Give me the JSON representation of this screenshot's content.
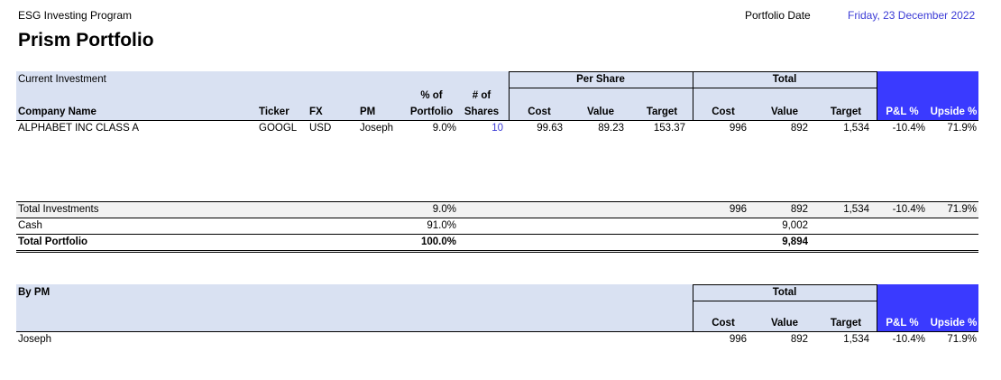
{
  "header": {
    "program": "ESG Investing Program",
    "title": "Prism Portfolio",
    "date_label": "Portfolio Date",
    "date": "Friday, 23 December 2022"
  },
  "investments": {
    "section": "Current Investment",
    "groups": [
      "Per Share",
      "Total"
    ],
    "column_prefixes": [
      "% of",
      "# of"
    ],
    "columns": [
      "Company Name",
      "Ticker",
      "FX",
      "PM",
      "Portfolio",
      "Shares",
      "Cost",
      "Value",
      "Target",
      "Cost",
      "Value",
      "Target",
      "P&L %",
      "Upside %"
    ],
    "rows": [
      [
        "ALPHABET INC CLASS A",
        "GOOGL",
        "USD",
        "Joseph",
        "9.0%",
        "10",
        "99.63",
        "89.23",
        "153.37",
        "996",
        "892",
        "1,534",
        "-10.4%",
        "71.9%"
      ]
    ]
  },
  "totals": [
    {
      "label": "Total Investments",
      "pct": "9.0%",
      "cost": "996",
      "value": "892",
      "target": "1,534",
      "pnl": "-10.4%",
      "upside": "71.9%"
    },
    {
      "label": "Cash",
      "pct": "91.0%",
      "value": "9,002"
    },
    {
      "label": "Total Portfolio",
      "pct": "100.0%",
      "value": "9,894"
    }
  ],
  "by_pm": {
    "section": "By PM",
    "group": "Total",
    "columns": [
      "Cost",
      "Value",
      "Target",
      "P&L %",
      "Upside %"
    ],
    "rows": [
      [
        "Joseph",
        "996",
        "892",
        "1,534",
        "-10.4%",
        "71.9%"
      ]
    ]
  }
}
